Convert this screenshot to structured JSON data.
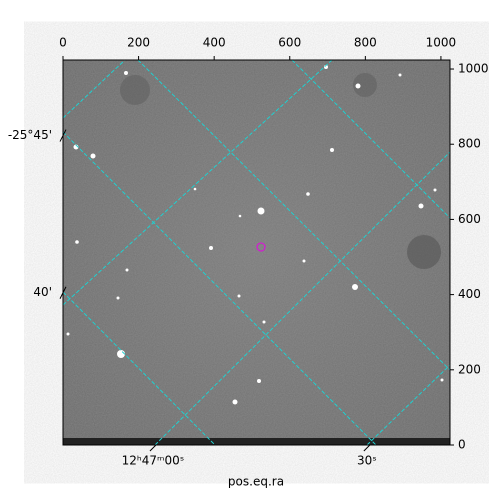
{
  "chart_data": {
    "type": "image",
    "xlabel": "pos.eq.ra",
    "xlim": [
      0,
      1024
    ],
    "ylim": [
      0,
      1024
    ],
    "xticks": [
      0,
      200,
      400,
      600,
      800,
      1000
    ],
    "yticks": [
      0,
      200,
      400,
      600,
      800,
      1000
    ],
    "ra_ticks": [
      {
        "value": 238,
        "label": "12ʰ47ᵐ00ˢ"
      },
      {
        "value": 804,
        "label": "30ˢ"
      }
    ],
    "dec_ticks": [
      {
        "value": 823,
        "label": "-25°45'"
      },
      {
        "value": 405,
        "label": "40'"
      }
    ],
    "grid_color": "#20d0d0"
  }
}
